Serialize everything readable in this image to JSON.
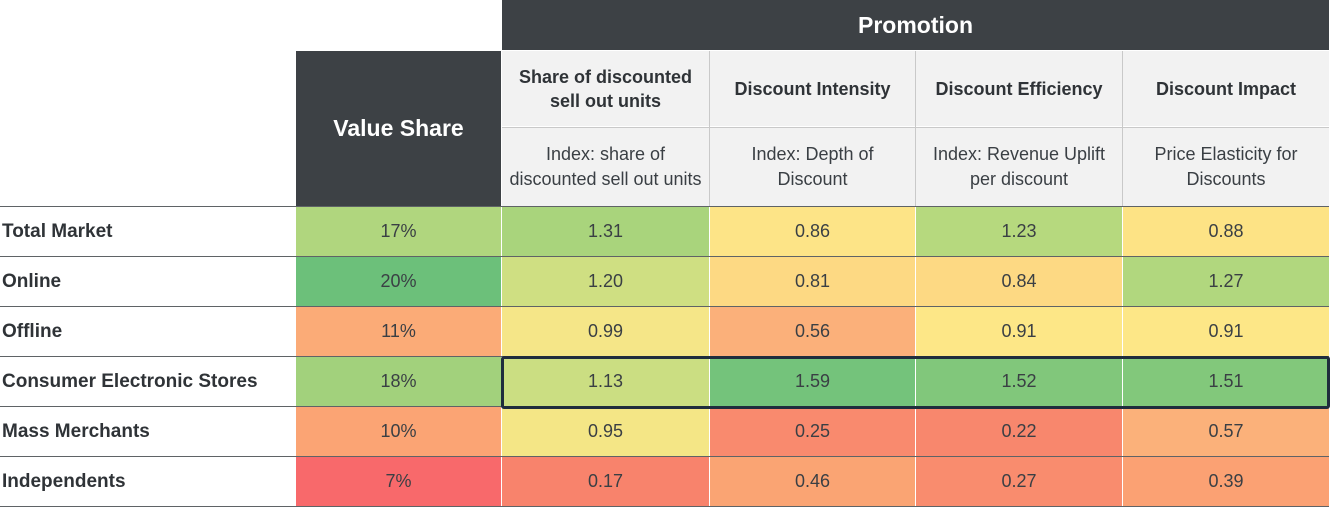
{
  "chart_data": {
    "type": "table",
    "group_header": "Promotion",
    "value_share_header": "Value Share",
    "columns": [
      {
        "title": "Share of discounted sell out units",
        "subtitle": "Index: share of discounted sell out units"
      },
      {
        "title": "Discount Intensity",
        "subtitle": "Index: Depth of Discount"
      },
      {
        "title": "Discount Efficiency",
        "subtitle": "Index: Revenue Uplift per discount"
      },
      {
        "title": "Discount Impact",
        "subtitle": "Price Elasticity for Discounts"
      }
    ],
    "rows": [
      {
        "label": "Total Market",
        "value_share": "17%",
        "values": [
          "1.31",
          "0.86",
          "1.23",
          "0.88"
        ]
      },
      {
        "label": "Online",
        "value_share": "20%",
        "values": [
          "1.20",
          "0.81",
          "0.84",
          "1.27"
        ]
      },
      {
        "label": "Offline",
        "value_share": "11%",
        "values": [
          "0.99",
          "0.56",
          "0.91",
          "0.91"
        ]
      },
      {
        "label": "Consumer Electronic Stores",
        "value_share": "18%",
        "values": [
          "1.13",
          "1.59",
          "1.52",
          "1.51"
        ]
      },
      {
        "label": "Mass Merchants",
        "value_share": "10%",
        "values": [
          "0.95",
          "0.25",
          "0.22",
          "0.57"
        ]
      },
      {
        "label": "Independents",
        "value_share": "7%",
        "values": [
          "0.17",
          "0.46",
          "0.27",
          "0.39"
        ]
      }
    ],
    "cell_colors": [
      [
        "#b0d67e",
        "#a9d47c",
        "#fde487",
        "#b6d97e",
        "#fde385"
      ],
      [
        "#6cc07a",
        "#cfdf82",
        "#fdd983",
        "#fdd983",
        "#b1d77e"
      ],
      [
        "#fbab77",
        "#f5e688",
        "#fbb07a",
        "#fde787",
        "#fde787"
      ],
      [
        "#a2d17c",
        "#cbde82",
        "#74c37b",
        "#81c77b",
        "#82c87b"
      ],
      [
        "#fba474",
        "#f4e686",
        "#f98a6e",
        "#f8876d",
        "#fbb17a"
      ],
      [
        "#f8696b",
        "#f8836c",
        "#faa473",
        "#f98c6e",
        "#fba173"
      ]
    ],
    "highlighted_row": "Consumer Electronic Stores"
  }
}
